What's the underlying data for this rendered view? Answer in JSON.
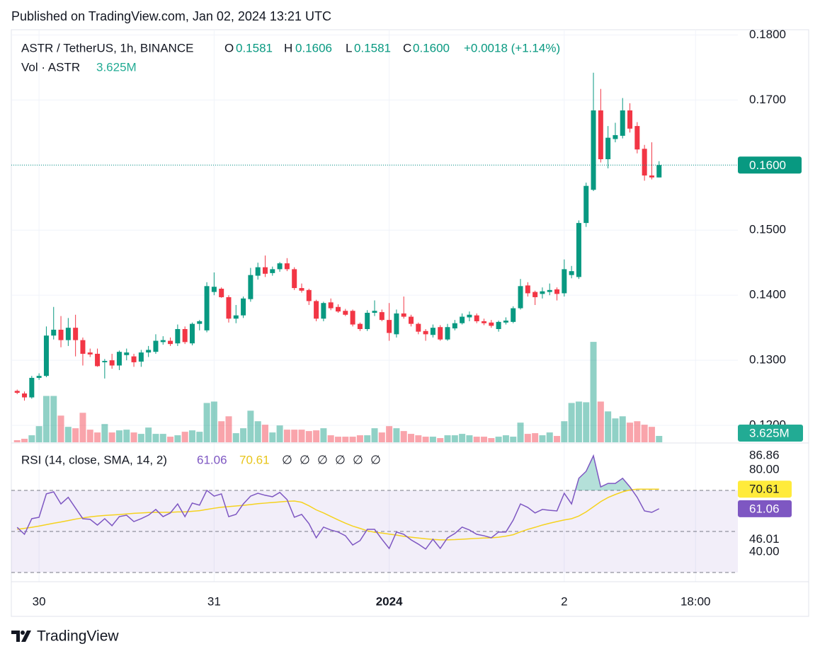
{
  "header": {
    "published": "Published on TradingView.com, Jan 02, 2024 13:21 UTC",
    "symbol": "ASTR / TetherUS, 1h, BINANCE",
    "open_key": "O",
    "open": "0.1581",
    "high_key": "H",
    "high": "0.1606",
    "low_key": "L",
    "low": "0.1581",
    "close_key": "C",
    "close": "0.1600",
    "change": "+0.0018 (+1.14%)",
    "volume_title": "Vol · ASTR",
    "volume": "3.625M",
    "rsi_title": "RSI (14, close, SMA, 14, 2)",
    "na": [
      "∅",
      "∅",
      "∅",
      "∅",
      "∅",
      "∅"
    ],
    "brand": "TradingView"
  },
  "chart_data": [
    {
      "type": "candlestick",
      "grid": true,
      "colors": {
        "up": "#089981",
        "down": "#f23645"
      },
      "xlim": [
        -3.8,
        95.8
      ],
      "xticks": [
        {
          "value": 0,
          "label": "30"
        },
        {
          "value": 24,
          "label": "31"
        },
        {
          "value": 48,
          "label": "2024"
        },
        {
          "value": 72,
          "label": "2"
        },
        {
          "value": 90,
          "label": "18:00"
        }
      ],
      "ylim": [
        0.1174,
        0.1808
      ],
      "yticks": [
        {
          "value": 0.12,
          "label": "0.1200"
        },
        {
          "value": 0.13,
          "label": "0.1300"
        },
        {
          "value": 0.14,
          "label": "0.1400"
        },
        {
          "value": 0.15,
          "label": "0.1500"
        },
        {
          "value": 0.16,
          "label": "0.1600"
        },
        {
          "value": 0.17,
          "label": "0.1700"
        },
        {
          "value": 0.18,
          "label": "0.1800"
        }
      ],
      "x": [
        -3,
        -2,
        -1,
        0,
        1,
        2,
        3,
        4,
        5,
        6,
        7,
        8,
        9,
        10,
        11,
        12,
        13,
        14,
        15,
        16,
        17,
        18,
        19,
        20,
        21,
        22,
        23,
        24,
        25,
        26,
        27,
        28,
        29,
        30,
        31,
        32,
        33,
        34,
        35,
        36,
        37,
        38,
        39,
        40,
        41,
        42,
        43,
        44,
        45,
        46,
        47,
        48,
        49,
        50,
        51,
        52,
        53,
        54,
        55,
        56,
        57,
        58,
        59,
        60,
        61,
        62,
        63,
        64,
        65,
        66,
        67,
        68,
        69,
        70,
        71,
        72,
        73,
        74,
        75,
        76,
        77,
        78,
        79,
        80,
        81,
        82,
        83,
        84,
        85
      ],
      "ohlc": [
        [
          0.1253,
          0.1255,
          0.1248,
          0.125
        ],
        [
          0.1249,
          0.1252,
          0.1238,
          0.1243
        ],
        [
          0.1243,
          0.1276,
          0.1241,
          0.1273
        ],
        [
          0.1273,
          0.128,
          0.127,
          0.1276
        ],
        [
          0.1276,
          0.1352,
          0.1274,
          0.1338
        ],
        [
          0.1338,
          0.1382,
          0.1332,
          0.1347
        ],
        [
          0.1347,
          0.1368,
          0.132,
          0.1331
        ],
        [
          0.1331,
          0.1365,
          0.1322,
          0.135
        ],
        [
          0.135,
          0.137,
          0.1306,
          0.1331
        ],
        [
          0.1331,
          0.1335,
          0.1292,
          0.131
        ],
        [
          0.1312,
          0.1318,
          0.1305,
          0.1309
        ],
        [
          0.131,
          0.1318,
          0.129,
          0.1291
        ],
        [
          0.1297,
          0.1302,
          0.1272,
          0.1299
        ],
        [
          0.13,
          0.131,
          0.1287,
          0.1292
        ],
        [
          0.1292,
          0.1315,
          0.1285,
          0.1313
        ],
        [
          0.1308,
          0.1318,
          0.13,
          0.1312
        ],
        [
          0.1306,
          0.131,
          0.129,
          0.1297
        ],
        [
          0.1298,
          0.1316,
          0.129,
          0.1312
        ],
        [
          0.1312,
          0.1322,
          0.1305,
          0.1316
        ],
        [
          0.1313,
          0.134,
          0.131,
          0.133
        ],
        [
          0.1328,
          0.1337,
          0.1324,
          0.1331
        ],
        [
          0.133,
          0.1335,
          0.1322,
          0.1325
        ],
        [
          0.1326,
          0.1355,
          0.1322,
          0.1348
        ],
        [
          0.1348,
          0.1352,
          0.1325,
          0.1328
        ],
        [
          0.1326,
          0.1358,
          0.1323,
          0.1356
        ],
        [
          0.1356,
          0.1362,
          0.1346,
          0.136
        ],
        [
          0.1346,
          0.142,
          0.1343,
          0.1414
        ],
        [
          0.1405,
          0.1435,
          0.14,
          0.1413
        ],
        [
          0.141,
          0.1412,
          0.1396,
          0.1397
        ],
        [
          0.1397,
          0.14,
          0.1358,
          0.1364
        ],
        [
          0.1364,
          0.1385,
          0.1357,
          0.1369
        ],
        [
          0.1369,
          0.1398,
          0.1365,
          0.1395
        ],
        [
          0.1394,
          0.1442,
          0.139,
          0.1431
        ],
        [
          0.143,
          0.145,
          0.1424,
          0.1443
        ],
        [
          0.1443,
          0.1461,
          0.1428,
          0.1433
        ],
        [
          0.1434,
          0.1444,
          0.143,
          0.144
        ],
        [
          0.144,
          0.1451,
          0.1436,
          0.1449
        ],
        [
          0.1449,
          0.1457,
          0.1437,
          0.144
        ],
        [
          0.144,
          0.1443,
          0.1408,
          0.1411
        ],
        [
          0.1411,
          0.1418,
          0.1404,
          0.1407
        ],
        [
          0.1408,
          0.141,
          0.1385,
          0.1391
        ],
        [
          0.1391,
          0.1393,
          0.136,
          0.1364
        ],
        [
          0.1364,
          0.139,
          0.136,
          0.1388
        ],
        [
          0.1389,
          0.1395,
          0.1377,
          0.138
        ],
        [
          0.1382,
          0.1386,
          0.1373,
          0.1375
        ],
        [
          0.1376,
          0.1379,
          0.1368,
          0.137
        ],
        [
          0.1376,
          0.1378,
          0.1352,
          0.1355
        ],
        [
          0.1356,
          0.1358,
          0.1345,
          0.1348
        ],
        [
          0.1348,
          0.1377,
          0.1345,
          0.1373
        ],
        [
          0.1373,
          0.1392,
          0.1368,
          0.1376
        ],
        [
          0.1374,
          0.1378,
          0.136,
          0.1362
        ],
        [
          0.1362,
          0.1388,
          0.133,
          0.1342
        ],
        [
          0.134,
          0.1378,
          0.1335,
          0.1372
        ],
        [
          0.1372,
          0.1398,
          0.1364,
          0.1367
        ],
        [
          0.1367,
          0.137,
          0.1352,
          0.1356
        ],
        [
          0.1356,
          0.1358,
          0.134,
          0.1344
        ],
        [
          0.1345,
          0.1348,
          0.133,
          0.134
        ],
        [
          0.1339,
          0.1355,
          0.1335,
          0.135
        ],
        [
          0.1351,
          0.1354,
          0.133,
          0.1332
        ],
        [
          0.1332,
          0.1356,
          0.133,
          0.1351
        ],
        [
          0.1349,
          0.1362,
          0.1346,
          0.1357
        ],
        [
          0.1357,
          0.1372,
          0.1355,
          0.1367
        ],
        [
          0.1366,
          0.1375,
          0.136,
          0.137
        ],
        [
          0.1369,
          0.1372,
          0.1357,
          0.136
        ],
        [
          0.136,
          0.1364,
          0.1354,
          0.1357
        ],
        [
          0.1358,
          0.1362,
          0.135,
          0.1353
        ],
        [
          0.1348,
          0.1361,
          0.1344,
          0.1359
        ],
        [
          0.1358,
          0.1366,
          0.1355,
          0.1361
        ],
        [
          0.1359,
          0.1383,
          0.1357,
          0.138
        ],
        [
          0.138,
          0.1425,
          0.1378,
          0.1414
        ],
        [
          0.1415,
          0.142,
          0.1398,
          0.1403
        ],
        [
          0.1405,
          0.1407,
          0.1385,
          0.1397
        ],
        [
          0.1402,
          0.1412,
          0.1395,
          0.1406
        ],
        [
          0.1405,
          0.1418,
          0.14,
          0.1408
        ],
        [
          0.1409,
          0.1412,
          0.1392,
          0.1402
        ],
        [
          0.1403,
          0.1455,
          0.1398,
          0.144
        ],
        [
          0.1431,
          0.1445,
          0.1426,
          0.1437
        ],
        [
          0.1428,
          0.1515,
          0.1425,
          0.1511
        ],
        [
          0.1511,
          0.1573,
          0.1505,
          0.1568
        ],
        [
          0.1562,
          0.1742,
          0.156,
          0.1684
        ],
        [
          0.1684,
          0.1717,
          0.1604,
          0.1609
        ],
        [
          0.1609,
          0.166,
          0.1595,
          0.1642
        ],
        [
          0.164,
          0.1665,
          0.1635,
          0.1646
        ],
        [
          0.1645,
          0.1703,
          0.1641,
          0.1684
        ],
        [
          0.1684,
          0.1695,
          0.165,
          0.1656
        ],
        [
          0.166,
          0.1666,
          0.1618,
          0.1624
        ],
        [
          0.1625,
          0.1631,
          0.1576,
          0.1584
        ],
        [
          0.1584,
          0.1635,
          0.1578,
          0.1581
        ],
        [
          0.1581,
          0.1606,
          0.1581,
          0.16
        ]
      ]
    },
    {
      "type": "bar",
      "ylim": [
        0,
        235
      ],
      "values": [
        1.2,
        2,
        4,
        9.2,
        26.4,
        26.4,
        15.2,
        8.8,
        8,
        16.8,
        7.2,
        5.6,
        10.4,
        5.6,
        6.8,
        7.2,
        5.6,
        4.8,
        8.4,
        4.8,
        4.8,
        3.2,
        4,
        6,
        6.8,
        6,
        22.4,
        23.2,
        12,
        14.8,
        5.2,
        8,
        18,
        12,
        10,
        5.6,
        9.6,
        7.2,
        7.2,
        7.2,
        6.4,
        6.8,
        8,
        4,
        3.2,
        3.2,
        3.2,
        4,
        4,
        8,
        5.6,
        9.2,
        8,
        6.4,
        4.8,
        4,
        3.2,
        3.2,
        2.4,
        4,
        4,
        4.8,
        4,
        3.2,
        3.2,
        2.4,
        3.2,
        4,
        3.2,
        11.2,
        4.8,
        5.2,
        4,
        5.6,
        3.6,
        12,
        22.4,
        23.2,
        22.8,
        57.2,
        23.2,
        17.6,
        13.6,
        14.8,
        11.2,
        12,
        10,
        8.8,
        3.625
      ]
    },
    {
      "type": "line",
      "ylim": [
        25.5,
        92.4
      ],
      "yticks": [
        86.86,
        {
          "value": 80,
          "label": "80.00"
        },
        46.01,
        {
          "value": 40,
          "label": "40.00"
        }
      ],
      "bands": [
        30,
        50,
        70
      ],
      "band_color": "#7e57c2",
      "overbought_color": "#089981",
      "series": [
        {
          "color": "#7e57c2",
          "values": [
            52,
            48.6,
            56.2,
            56.9,
            68.3,
            69.3,
            63.4,
            66.6,
            61.4,
            56.2,
            55.9,
            53.1,
            56.2,
            52.8,
            57.2,
            57.9,
            54.8,
            56.2,
            57.9,
            60.7,
            57.2,
            59,
            63.4,
            57.2,
            63.8,
            62.8,
            70,
            67.2,
            68.3,
            57.2,
            58.3,
            63.4,
            67.2,
            68.6,
            67.6,
            66.9,
            69,
            65.5,
            56.9,
            58.3,
            53.8,
            46.9,
            52.1,
            50.7,
            49.7,
            47.9,
            43.4,
            45.5,
            51,
            51,
            46.2,
            41.7,
            49.7,
            48.6,
            45.9,
            43.8,
            41.4,
            46.2,
            41.7,
            46.9,
            49,
            52.1,
            50.7,
            48.6,
            47.9,
            46.9,
            49.7,
            49.7,
            55.5,
            63.4,
            61.7,
            59,
            60.7,
            60.3,
            60,
            68.6,
            63.4,
            75.9,
            79.3,
            86.86,
            71.7,
            73.4,
            73.4,
            75.9,
            71.7,
            66.6,
            60,
            59.3,
            61.06
          ]
        },
        {
          "color": "#f5d21f",
          "values": [
            51,
            51.5,
            52,
            52.6,
            53.3,
            54,
            54.6,
            55.3,
            56,
            56.6,
            57.1,
            57.5,
            57.8,
            58,
            58.2,
            58.5,
            58.8,
            59,
            59.2,
            59.3,
            59.3,
            59.3,
            59.5,
            59.5,
            59.8,
            60.1,
            60.7,
            61.3,
            61.8,
            62.1,
            62.4,
            62.7,
            63.1,
            63.5,
            63.8,
            64.1,
            64.4,
            64.7,
            64.8,
            64.2,
            62.5,
            60.5,
            59,
            57.3,
            55.6,
            54,
            52.6,
            51.5,
            50.3,
            49.6,
            49.2,
            48.7,
            48.2,
            47.6,
            47.2,
            46.8,
            46.4,
            46.1,
            45.9,
            45.9,
            46,
            46.2,
            46.4,
            46.6,
            46.8,
            46.9,
            47.2,
            47.7,
            48.4,
            49.8,
            51,
            52,
            53.1,
            54,
            54.8,
            55.6,
            56.2,
            57.5,
            59.5,
            62,
            64.5,
            66.5,
            68,
            69.3,
            70.2,
            70.6,
            70.61,
            70.6,
            70.61
          ]
        }
      ]
    }
  ]
}
